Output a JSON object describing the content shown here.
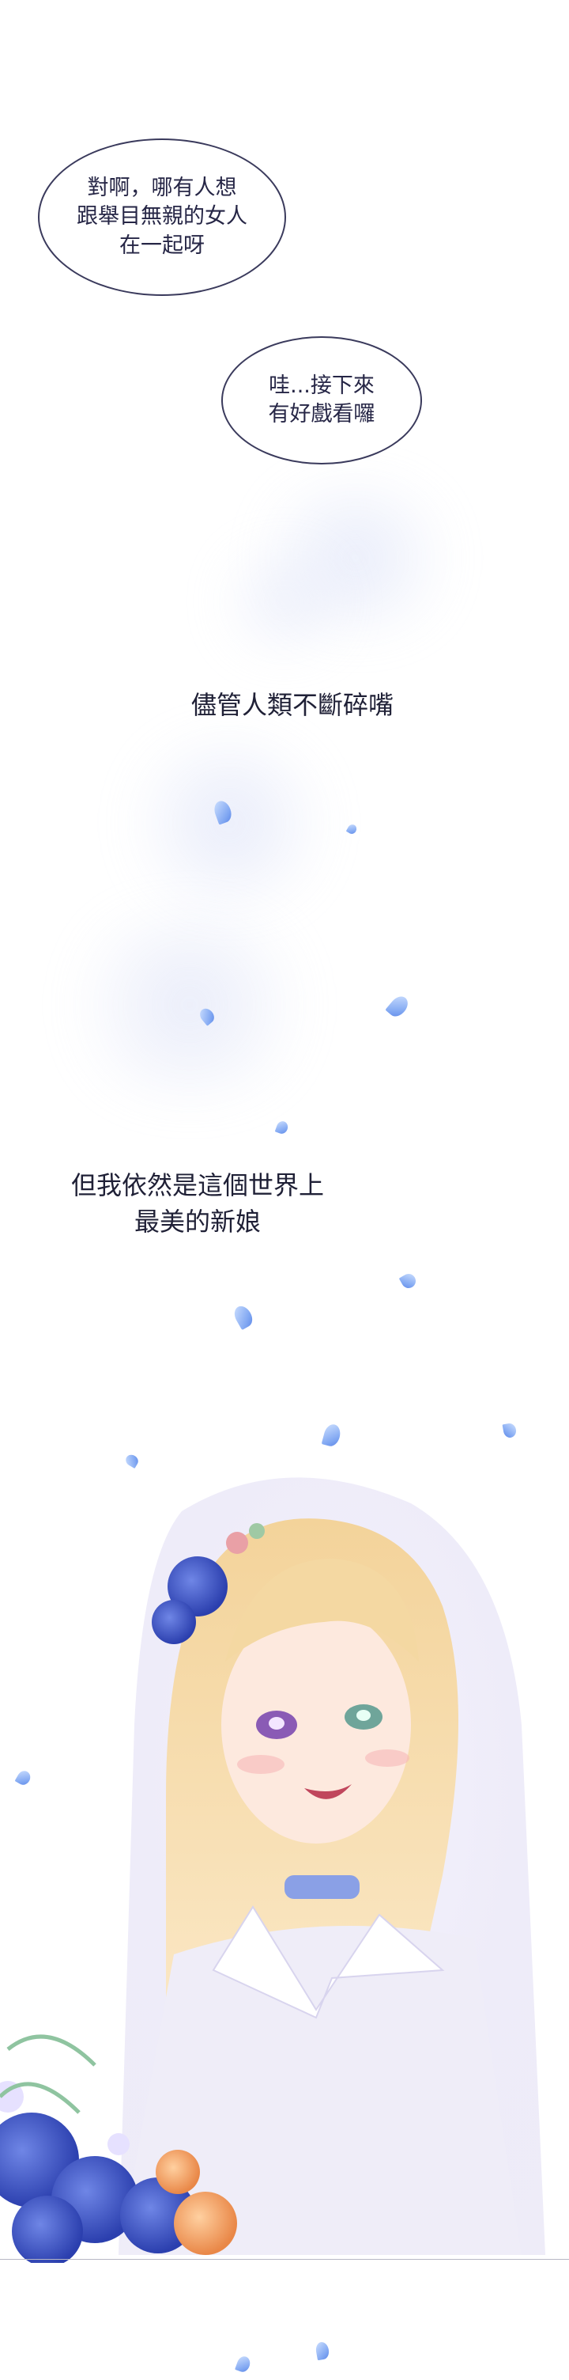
{
  "bubbles": [
    {
      "lines": [
        "對啊，哪有人想",
        "跟舉目無親的女人",
        "在一起呀"
      ]
    },
    {
      "lines": [
        "哇...接下來",
        "有好戲看囉"
      ]
    }
  ],
  "captions": [
    {
      "lines": [
        "儘管人類不斷碎嘴"
      ]
    },
    {
      "lines": [
        "但我依然是這個世界上",
        "最美的新娘"
      ]
    }
  ],
  "colors": {
    "text": "#1f2036",
    "bubble_border": "#3a3a5c",
    "petal": "#7fa6f2",
    "veil": "#e9e6f8",
    "hair": "#f6dca6",
    "rose_blue": "#3f55c8",
    "rose_orange": "#f2a46b"
  },
  "illustration": {
    "subject": "bride-with-veil-and-bouquet"
  }
}
